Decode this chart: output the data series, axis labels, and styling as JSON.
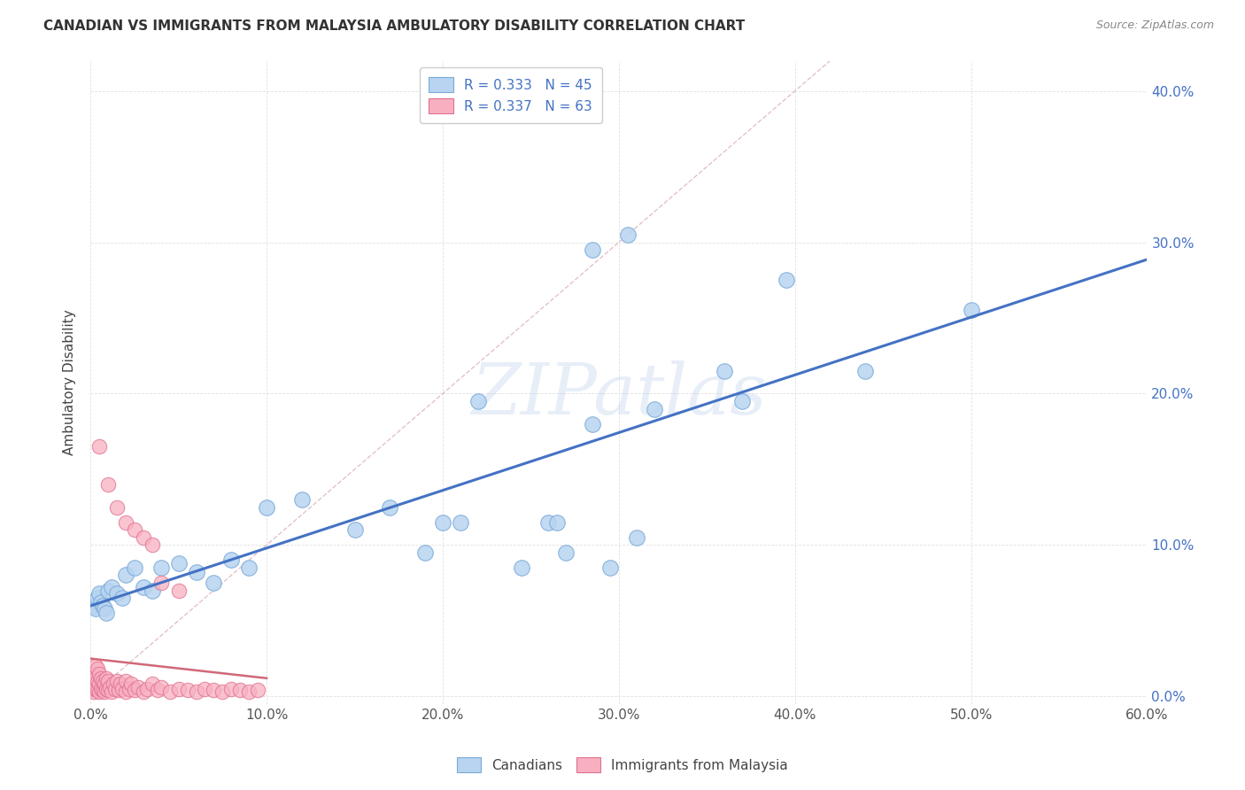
{
  "title": "CANADIAN VS IMMIGRANTS FROM MALAYSIA AMBULATORY DISABILITY CORRELATION CHART",
  "source": "Source: ZipAtlas.com",
  "ylabel": "Ambulatory Disability",
  "watermark": "ZIPatlas",
  "xlim": [
    0.0,
    0.6
  ],
  "ylim": [
    -0.005,
    0.42
  ],
  "xticks": [
    0.0,
    0.1,
    0.2,
    0.3,
    0.4,
    0.5,
    0.6
  ],
  "yticks": [
    0.0,
    0.1,
    0.2,
    0.3,
    0.4
  ],
  "color_canadian_fill": "#b8d4f0",
  "color_canadian_edge": "#7aaad8",
  "color_malaysia_fill": "#f8b0c0",
  "color_malaysia_edge": "#e07090",
  "color_line_canadian": "#4472c4",
  "color_line_malaysia": "#d06878",
  "color_diag": "#d8a8b0",
  "can_x": [
    0.002,
    0.003,
    0.004,
    0.005,
    0.006,
    0.007,
    0.008,
    0.009,
    0.01,
    0.012,
    0.015,
    0.018,
    0.02,
    0.025,
    0.03,
    0.035,
    0.04,
    0.05,
    0.06,
    0.07,
    0.08,
    0.09,
    0.1,
    0.12,
    0.15,
    0.17,
    0.19,
    0.2,
    0.21,
    0.22,
    0.245,
    0.26,
    0.265,
    0.27,
    0.285,
    0.285,
    0.295,
    0.305,
    0.31,
    0.32,
    0.36,
    0.37,
    0.395,
    0.44,
    0.5
  ],
  "can_y": [
    0.06,
    0.058,
    0.065,
    0.068,
    0.062,
    0.06,
    0.058,
    0.055,
    0.07,
    0.072,
    0.068,
    0.065,
    0.08,
    0.085,
    0.072,
    0.07,
    0.085,
    0.088,
    0.082,
    0.075,
    0.09,
    0.085,
    0.125,
    0.13,
    0.11,
    0.125,
    0.095,
    0.115,
    0.115,
    0.195,
    0.085,
    0.115,
    0.115,
    0.095,
    0.18,
    0.295,
    0.085,
    0.305,
    0.105,
    0.19,
    0.215,
    0.195,
    0.275,
    0.215,
    0.255
  ],
  "mal_x": [
    0.001,
    0.001,
    0.002,
    0.002,
    0.002,
    0.003,
    0.003,
    0.003,
    0.004,
    0.004,
    0.004,
    0.005,
    0.005,
    0.005,
    0.006,
    0.006,
    0.007,
    0.007,
    0.008,
    0.008,
    0.009,
    0.009,
    0.01,
    0.01,
    0.011,
    0.012,
    0.013,
    0.014,
    0.015,
    0.016,
    0.017,
    0.018,
    0.02,
    0.02,
    0.022,
    0.023,
    0.025,
    0.027,
    0.03,
    0.032,
    0.035,
    0.038,
    0.04,
    0.045,
    0.05,
    0.055,
    0.06,
    0.065,
    0.07,
    0.075,
    0.08,
    0.085,
    0.09,
    0.095,
    0.005,
    0.01,
    0.015,
    0.02,
    0.025,
    0.03,
    0.035,
    0.04,
    0.05
  ],
  "mal_y": [
    0.005,
    0.01,
    0.003,
    0.008,
    0.015,
    0.005,
    0.012,
    0.02,
    0.004,
    0.01,
    0.018,
    0.003,
    0.008,
    0.015,
    0.005,
    0.012,
    0.004,
    0.01,
    0.003,
    0.008,
    0.005,
    0.012,
    0.004,
    0.01,
    0.006,
    0.003,
    0.008,
    0.005,
    0.01,
    0.004,
    0.008,
    0.005,
    0.003,
    0.01,
    0.005,
    0.008,
    0.004,
    0.006,
    0.003,
    0.005,
    0.008,
    0.004,
    0.006,
    0.003,
    0.005,
    0.004,
    0.003,
    0.005,
    0.004,
    0.003,
    0.005,
    0.004,
    0.003,
    0.004,
    0.165,
    0.14,
    0.125,
    0.115,
    0.11,
    0.105,
    0.1,
    0.075,
    0.07
  ],
  "figsize": [
    14.06,
    8.92
  ],
  "dpi": 100
}
